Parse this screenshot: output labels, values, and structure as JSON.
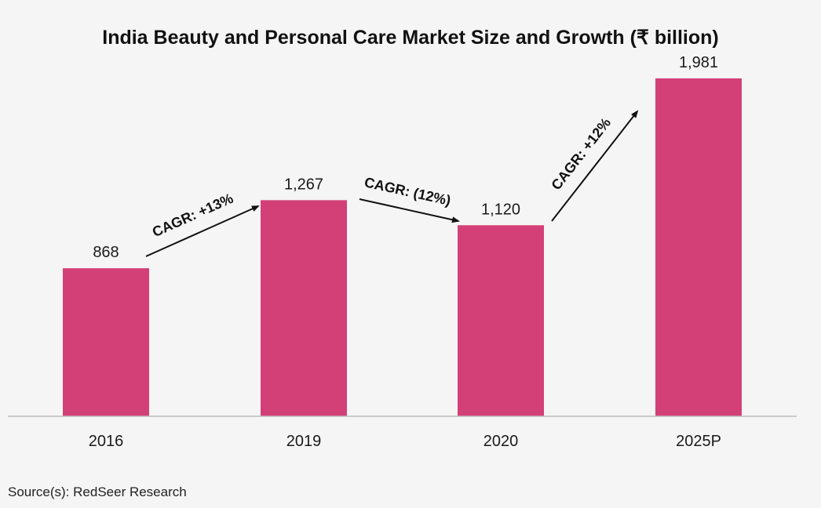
{
  "chart_data": {
    "type": "bar",
    "title": "India Beauty and Personal Care Market Size and Growth (₹ billion)",
    "categories": [
      "2016",
      "2019",
      "2020",
      "2025P"
    ],
    "values": [
      868,
      1267,
      1120,
      1981
    ],
    "value_labels": [
      "868",
      "1,267",
      "1,120",
      "1,981"
    ],
    "xlabel": "",
    "ylabel": "",
    "ylim": [
      0,
      2150
    ],
    "grid": false,
    "legend": "none",
    "bar_color": "#d33f77",
    "annotations": [
      {
        "text": "CAGR: +13%",
        "from": "2016",
        "to": "2019"
      },
      {
        "text": "CAGR: (12%)",
        "from": "2019",
        "to": "2020"
      },
      {
        "text": "CAGR: +12%",
        "from": "2020",
        "to": "2025P"
      }
    ]
  },
  "source": "Source(s): RedSeer Research"
}
